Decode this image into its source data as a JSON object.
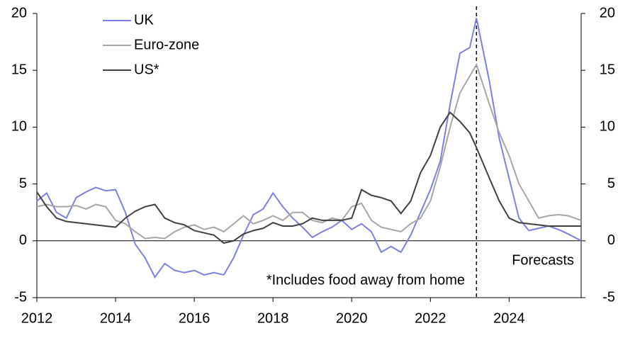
{
  "chart_data": {
    "type": "line",
    "x": [
      2012.0,
      2012.25,
      2012.5,
      2012.75,
      2013.0,
      2013.25,
      2013.5,
      2013.75,
      2014.0,
      2014.25,
      2014.5,
      2014.75,
      2015.0,
      2015.25,
      2015.5,
      2015.75,
      2016.0,
      2016.25,
      2016.5,
      2016.75,
      2017.0,
      2017.25,
      2017.5,
      2017.75,
      2018.0,
      2018.25,
      2018.5,
      2018.75,
      2019.0,
      2019.25,
      2019.5,
      2019.75,
      2020.0,
      2020.25,
      2020.5,
      2020.75,
      2021.0,
      2021.25,
      2021.5,
      2021.75,
      2022.0,
      2022.25,
      2022.5,
      2022.75,
      2023.0,
      2023.17,
      2023.5,
      2023.75,
      2024.0,
      2024.25,
      2024.5,
      2024.75,
      2025.0,
      2025.25,
      2025.5,
      2025.83
    ],
    "series": [
      {
        "name": "UK",
        "color": "#7b7fe6",
        "values": [
          3.5,
          4.2,
          2.5,
          2.0,
          3.8,
          4.3,
          4.7,
          4.4,
          4.5,
          2.5,
          -0.3,
          -1.5,
          -3.2,
          -2.0,
          -2.6,
          -2.8,
          -2.6,
          -3.0,
          -2.8,
          -3.0,
          -1.5,
          0.5,
          2.3,
          2.8,
          4.2,
          3.0,
          2.0,
          1.2,
          0.3,
          0.8,
          1.2,
          1.8,
          1.0,
          1.5,
          0.8,
          -1.0,
          -0.5,
          -1.0,
          0.5,
          2.5,
          4.5,
          7.0,
          12.0,
          16.5,
          17.0,
          19.6,
          14.0,
          9.0,
          5.5,
          2.0,
          0.9,
          1.1,
          1.3,
          1.0,
          0.6,
          0.0
        ]
      },
      {
        "name": "Euro-zone",
        "color": "#a6a6a6",
        "values": [
          3.0,
          3.2,
          3.0,
          3.0,
          3.1,
          2.8,
          3.2,
          3.0,
          1.8,
          1.5,
          0.8,
          0.2,
          0.3,
          0.2,
          0.8,
          1.2,
          1.4,
          1.0,
          1.2,
          0.8,
          1.5,
          2.2,
          1.5,
          1.8,
          2.2,
          1.8,
          2.5,
          2.5,
          1.8,
          1.6,
          2.0,
          1.8,
          3.0,
          3.3,
          1.8,
          1.2,
          1.0,
          0.8,
          1.5,
          2.0,
          3.5,
          6.5,
          10.0,
          13.0,
          14.5,
          15.5,
          12.0,
          9.5,
          7.5,
          5.0,
          3.5,
          2.0,
          2.2,
          2.3,
          2.2,
          1.8
        ]
      },
      {
        "name": "US*",
        "color": "#404040",
        "values": [
          4.3,
          3.0,
          2.0,
          1.7,
          1.6,
          1.5,
          1.4,
          1.3,
          1.2,
          2.0,
          2.6,
          3.0,
          3.2,
          2.0,
          1.6,
          1.4,
          0.9,
          0.7,
          0.5,
          -0.2,
          0.0,
          0.6,
          0.9,
          1.1,
          1.6,
          1.3,
          1.3,
          1.5,
          2.0,
          1.8,
          1.8,
          1.8,
          2.0,
          4.5,
          4.0,
          3.8,
          3.5,
          2.4,
          3.5,
          6.0,
          7.5,
          10.0,
          11.3,
          10.5,
          9.5,
          8.2,
          5.5,
          3.5,
          2.0,
          1.6,
          1.5,
          1.4,
          1.3,
          1.3,
          1.3,
          1.3
        ]
      }
    ],
    "xlim": [
      2012,
      2025.83
    ],
    "xticks": [
      2012,
      2014,
      2016,
      2018,
      2020,
      2022,
      2024
    ],
    "ylim": [
      -5,
      20
    ],
    "yticks": [
      -5,
      0,
      5,
      10,
      15,
      20
    ],
    "y2lim": [
      -5,
      20
    ],
    "y2ticks": [
      -5,
      0,
      5,
      10,
      15,
      20
    ],
    "forecast_start": 2023.17,
    "annotations": [
      "Forecasts",
      "*Includes food away from home"
    ],
    "legend": "top-left"
  }
}
